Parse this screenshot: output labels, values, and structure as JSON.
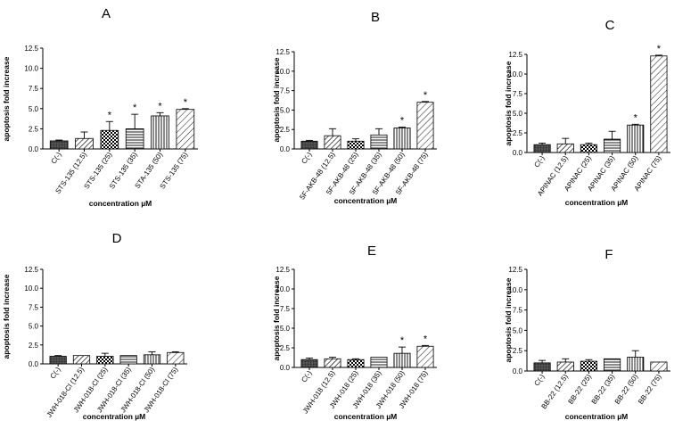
{
  "chart_data": [
    {
      "type": "bar",
      "panel": "A",
      "ylabel": "apoptosis fold increase",
      "xlabel": "concentration µM",
      "ylim": [
        0,
        12.5
      ],
      "yticks": [
        "0.0",
        "2.5",
        "5.0",
        "7.5",
        "10.0",
        "12.5"
      ],
      "categories": [
        "C(-)",
        "STS-135 (12.5)",
        "STS-135 (25)",
        "STS-135 (35)",
        "STA-135 (50)",
        "STS-135 (75)"
      ],
      "values": [
        1.0,
        1.3,
        2.3,
        2.5,
        4.1,
        4.9
      ],
      "errors": [
        0.1,
        0.8,
        1.1,
        1.8,
        0.4,
        0.1
      ],
      "significant": [
        false,
        false,
        true,
        true,
        true,
        true
      ],
      "significance_marker": "*"
    },
    {
      "type": "bar",
      "panel": "B",
      "ylabel": "apoptosis fold increase",
      "xlabel": "concentration µM",
      "ylim": [
        0,
        12.5
      ],
      "yticks": [
        "0.0",
        "2.5",
        "5.0",
        "7.5",
        "10.0",
        "12.5"
      ],
      "categories": [
        "C(-)",
        "5F-AKB-48 (12.5)",
        "5F-AKB-48 (25)",
        "5F-AKB-48 (35)",
        "5F-AKB-48 (50)",
        "5F-AKB-48 (75)"
      ],
      "values": [
        1.0,
        1.7,
        1.0,
        1.8,
        2.7,
        6.0
      ],
      "errors": [
        0.1,
        0.9,
        0.3,
        0.8,
        0.1,
        0.1
      ],
      "significant": [
        false,
        false,
        false,
        false,
        true,
        true
      ],
      "significance_marker": "*"
    },
    {
      "type": "bar",
      "panel": "C",
      "ylabel": "apoptosis fold increase",
      "xlabel": "concentration µM",
      "ylim": [
        0,
        12.5
      ],
      "yticks": [
        "0.0",
        "2.5",
        "5.0",
        "7.5",
        "10.0",
        "12.5"
      ],
      "categories": [
        "C(-)",
        "APINAC (12.5)",
        "APINAC (25)",
        "APINAC (35)",
        "APINAC (50)",
        "APINAC (75)"
      ],
      "values": [
        1.0,
        1.1,
        1.0,
        1.7,
        3.5,
        12.3
      ],
      "errors": [
        0.2,
        0.7,
        0.2,
        1.0,
        0.1,
        0.1
      ],
      "significant": [
        false,
        false,
        false,
        false,
        true,
        true
      ],
      "significance_marker": "*"
    },
    {
      "type": "bar",
      "panel": "D",
      "ylabel": "apoptosis fold increase",
      "xlabel": "concentration µM",
      "ylim": [
        0,
        12.5
      ],
      "yticks": [
        "0.0",
        "2.5",
        "5.0",
        "7.5",
        "10.0",
        "12.5"
      ],
      "categories": [
        "C(-)",
        "JWH-018-Cl (12.5)",
        "JWH-018-Cl (25)",
        "JWH-018-Cl (35)",
        "JWH-018-Cl (50)",
        "JWH-018-Cl (75)"
      ],
      "values": [
        1.0,
        1.1,
        1.0,
        1.1,
        1.2,
        1.5
      ],
      "errors": [
        0.1,
        0.0,
        0.4,
        0.0,
        0.4,
        0.1
      ],
      "significant": [
        false,
        false,
        false,
        false,
        false,
        false
      ],
      "significance_marker": "*"
    },
    {
      "type": "bar",
      "panel": "E",
      "ylabel": "apoptosis fold increase",
      "xlabel": "concentration µM",
      "ylim": [
        0,
        12.5
      ],
      "yticks": [
        "0.0",
        "2.5",
        "5.0",
        "7.5",
        "10.0",
        "12.5"
      ],
      "categories": [
        "C(-)",
        "JWH-018 (12.5)",
        "JWH-018 (25)",
        "JWH-018 (35)",
        "JWH-018 (50)",
        "JWH-018 (75)"
      ],
      "values": [
        1.0,
        1.1,
        1.0,
        1.3,
        1.8,
        2.7
      ],
      "errors": [
        0.2,
        0.2,
        0.1,
        0.0,
        0.8,
        0.1
      ],
      "significant": [
        false,
        false,
        false,
        false,
        true,
        true
      ],
      "significance_marker": "*"
    },
    {
      "type": "bar",
      "panel": "F",
      "ylabel": "apoptosis fold increase",
      "xlabel": "concentration µM",
      "ylim": [
        0,
        12.5
      ],
      "yticks": [
        "0.0",
        "2.5",
        "5.0",
        "7.5",
        "10.0",
        "12.5"
      ],
      "categories": [
        "C(-)",
        "BB-22 (12.5)",
        "BB-22 (25)",
        "BB-22 (35)",
        "BB-22 (50)",
        "BB-22 (75)"
      ],
      "values": [
        1.0,
        1.1,
        1.2,
        1.5,
        1.7,
        1.1
      ],
      "errors": [
        0.3,
        0.4,
        0.2,
        0.0,
        0.8,
        0.0
      ],
      "significant": [
        false,
        false,
        false,
        false,
        false,
        false
      ],
      "significance_marker": "*"
    }
  ]
}
